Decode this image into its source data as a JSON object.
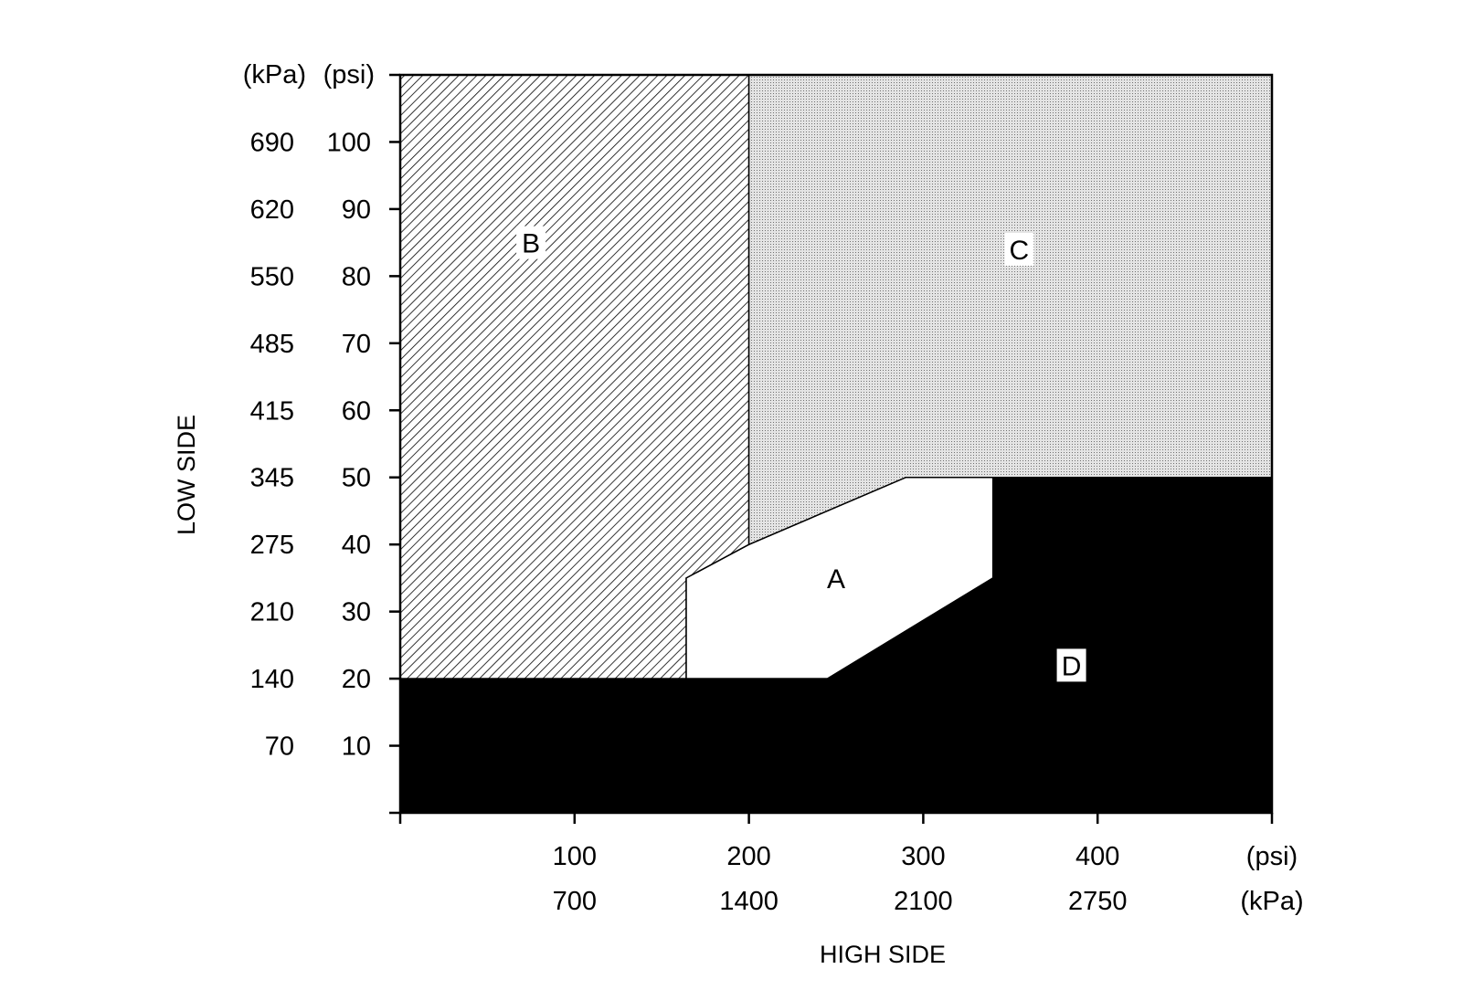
{
  "chart_data": {
    "type": "area",
    "title": "",
    "xlabel": "HIGH SIDE",
    "ylabel": "LOW SIDE",
    "xlim": [
      0,
      500
    ],
    "ylim": [
      0,
      110
    ],
    "grid": false,
    "x_ticks": [
      {
        "psi": 100,
        "psi_label": "100",
        "kpa_label": "700"
      },
      {
        "psi": 200,
        "psi_label": "200",
        "kpa_label": "1400"
      },
      {
        "psi": 300,
        "psi_label": "300",
        "kpa_label": "2100"
      },
      {
        "psi": 400,
        "psi_label": "400",
        "kpa_label": "2750"
      }
    ],
    "x_unit_labels": {
      "psi": "(psi)",
      "kpa": "(kPa)"
    },
    "y_ticks": [
      {
        "psi": 100,
        "psi_label": "100",
        "kpa_label": "690"
      },
      {
        "psi": 90,
        "psi_label": "90",
        "kpa_label": "620"
      },
      {
        "psi": 80,
        "psi_label": "80",
        "kpa_label": "550"
      },
      {
        "psi": 70,
        "psi_label": "70",
        "kpa_label": "485"
      },
      {
        "psi": 60,
        "psi_label": "60",
        "kpa_label": "415"
      },
      {
        "psi": 50,
        "psi_label": "50",
        "kpa_label": "345"
      },
      {
        "psi": 40,
        "psi_label": "40",
        "kpa_label": "275"
      },
      {
        "psi": 30,
        "psi_label": "30",
        "kpa_label": "210"
      },
      {
        "psi": 20,
        "psi_label": "20",
        "kpa_label": "140"
      },
      {
        "psi": 10,
        "psi_label": "10",
        "kpa_label": "70"
      }
    ],
    "y_unit_labels": {
      "kpa": "(kPa)",
      "psi": "(psi)"
    },
    "regions": [
      {
        "label": "A",
        "fill": "#ffffff",
        "label_at": [
          250,
          35
        ],
        "polygon": [
          [
            164,
            20
          ],
          [
            164,
            35
          ],
          [
            200,
            40
          ],
          [
            290,
            50
          ],
          [
            340,
            50
          ],
          [
            340,
            35
          ],
          [
            245,
            20
          ]
        ]
      },
      {
        "label": "B",
        "fill": "hatch",
        "label_at": [
          75,
          85
        ],
        "polygon": [
          [
            0,
            20
          ],
          [
            0,
            110
          ],
          [
            200,
            110
          ],
          [
            200,
            40
          ],
          [
            164,
            35
          ],
          [
            164,
            20
          ]
        ]
      },
      {
        "label": "C",
        "fill": "dots",
        "label_at": [
          355,
          84
        ],
        "polygon": [
          [
            200,
            40
          ],
          [
            200,
            110
          ],
          [
            500,
            110
          ],
          [
            500,
            50
          ],
          [
            290,
            50
          ]
        ]
      },
      {
        "label": "D",
        "fill": "#000000",
        "label_at": [
          385,
          22
        ],
        "polygon": [
          [
            0,
            0
          ],
          [
            0,
            20
          ],
          [
            245,
            20
          ],
          [
            340,
            35
          ],
          [
            340,
            50
          ],
          [
            500,
            50
          ],
          [
            500,
            0
          ]
        ]
      }
    ]
  }
}
